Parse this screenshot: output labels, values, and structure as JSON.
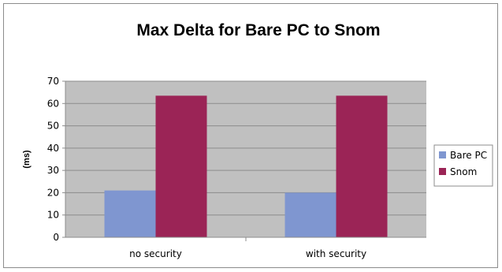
{
  "chart_data": {
    "type": "bar",
    "title": "Max Delta for Bare PC to Snom",
    "xlabel": "",
    "ylabel": "(ms)",
    "categories": [
      "no security",
      "with security"
    ],
    "series": [
      {
        "name": "Bare PC",
        "values": [
          21,
          20
        ],
        "color": "#7f96d0"
      },
      {
        "name": "Snom",
        "values": [
          63.5,
          63.5
        ],
        "color": "#9b2456"
      }
    ],
    "ylim": [
      0,
      70
    ],
    "yticks": [
      0,
      10,
      20,
      30,
      40,
      50,
      60,
      70
    ],
    "grid": true,
    "legend_position": "right",
    "colors": {
      "plot_area": "#c0c0c0",
      "gridline": "#8c8c8c"
    }
  }
}
